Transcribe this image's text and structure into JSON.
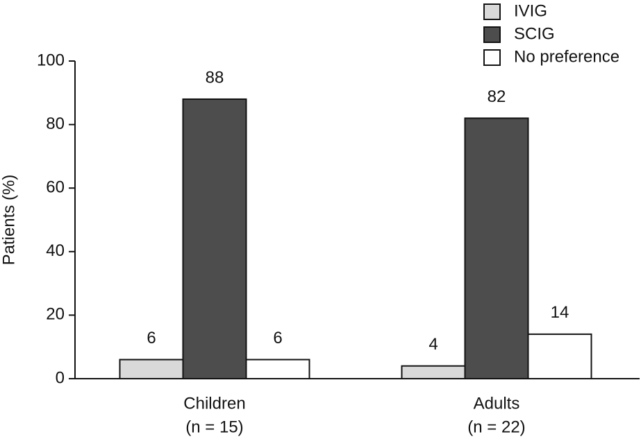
{
  "chart_data": {
    "type": "bar",
    "y_label": "Patients (%)",
    "categories": [
      "Children",
      "Adults"
    ],
    "category_notes": [
      "(n = 15)",
      "(n = 22)"
    ],
    "series": [
      {
        "name": "IVIG",
        "color": "#d9d9d9",
        "values": [
          6,
          4
        ]
      },
      {
        "name": "SCIG",
        "color": "#4d4d4d",
        "values": [
          88,
          82
        ]
      },
      {
        "name": "No preference",
        "color": "#ffffff",
        "values": [
          6,
          14
        ]
      }
    ],
    "ylim": [
      0,
      100
    ],
    "yticks": [
      0,
      20,
      40,
      60,
      80,
      100
    ],
    "grid": false,
    "legend": "top-right"
  }
}
